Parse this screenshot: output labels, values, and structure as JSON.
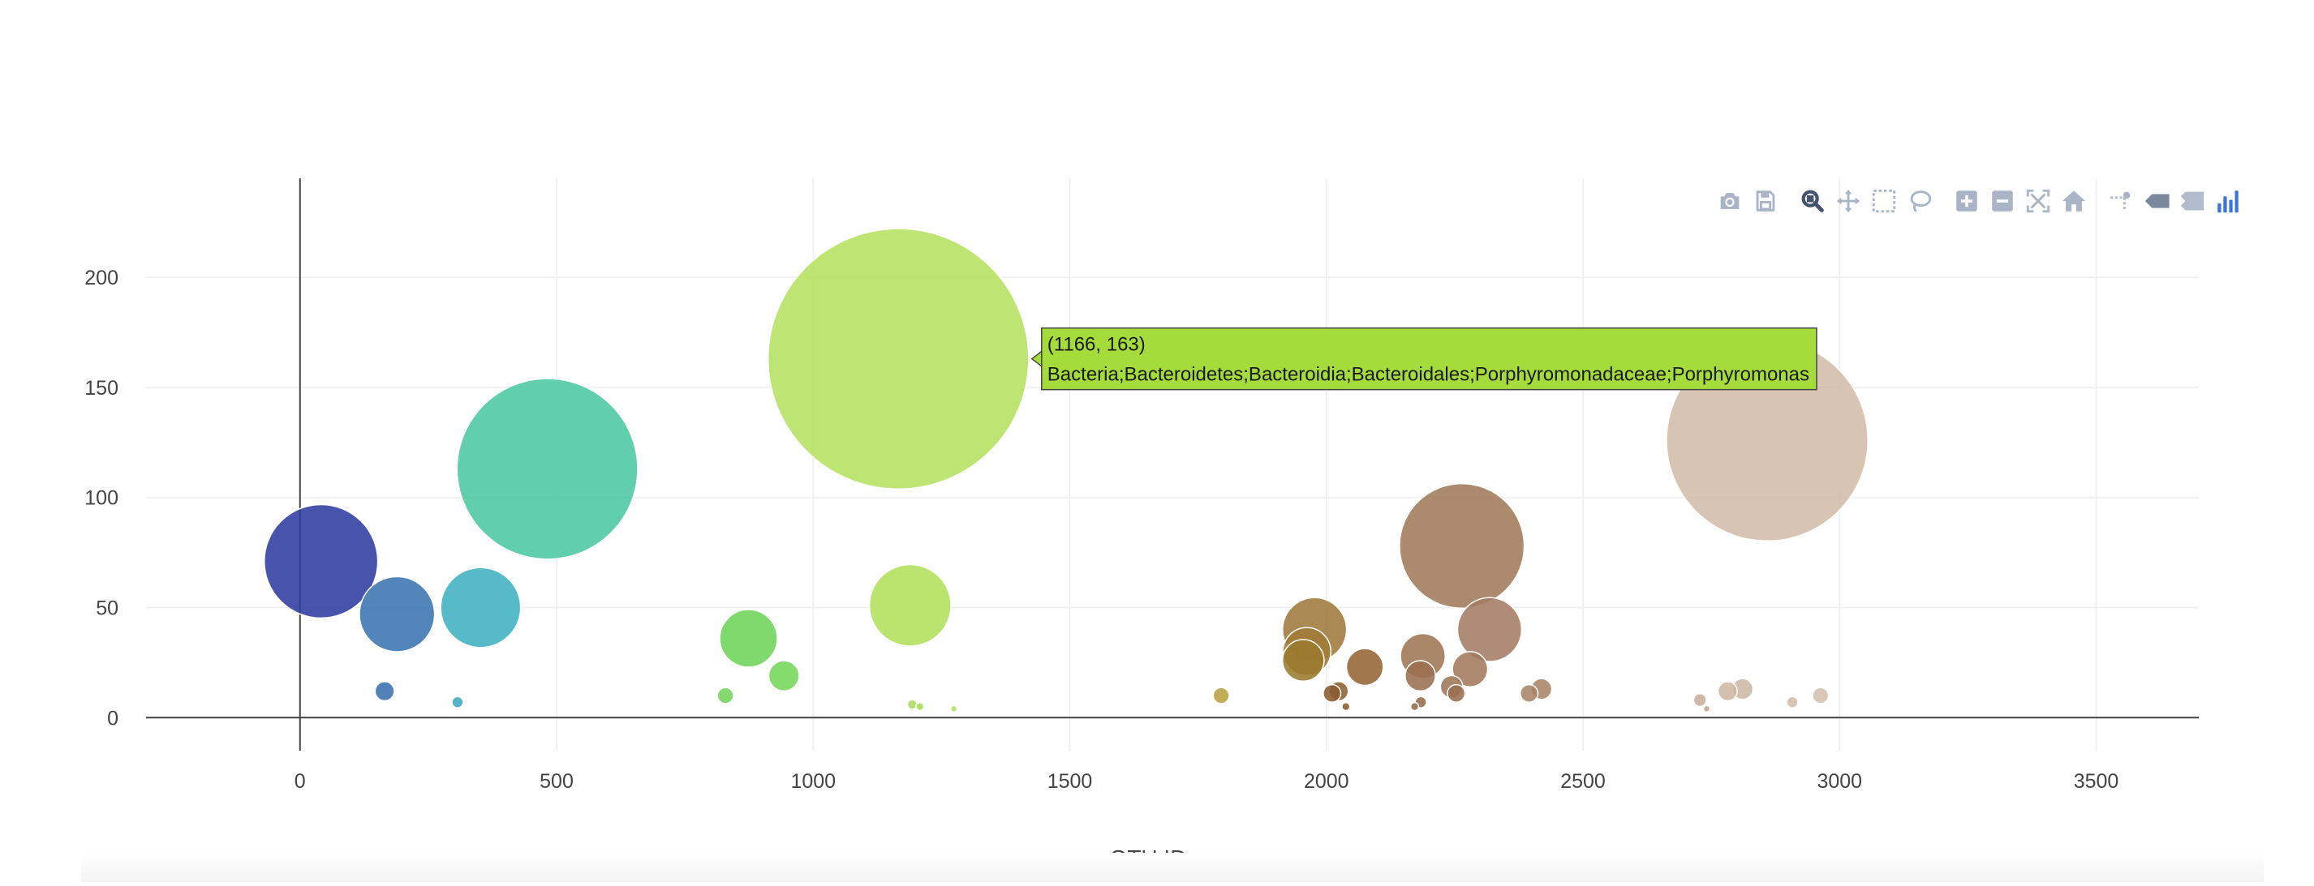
{
  "chart_data": {
    "type": "scatter",
    "mode": "markers",
    "xlabel": "OTU ID",
    "xlim": [
      -300,
      3700
    ],
    "ylim": [
      -15,
      245
    ],
    "x_ticks": [
      0,
      500,
      1000,
      1500,
      2000,
      2500,
      3000,
      3500
    ],
    "y_ticks": [
      0,
      50,
      100,
      150,
      200
    ],
    "grid": true,
    "points": [
      {
        "x": 41,
        "y": 71,
        "size": 71,
        "color": "#2f3b9f"
      },
      {
        "x": 189,
        "y": 47,
        "size": 47,
        "color": "#3a74b0"
      },
      {
        "x": 352,
        "y": 50,
        "size": 50,
        "color": "#3fb0c0"
      },
      {
        "x": 482,
        "y": 113,
        "size": 113,
        "color": "#4cc8a0"
      },
      {
        "x": 165,
        "y": 12,
        "size": 12,
        "color": "#3a6fb0"
      },
      {
        "x": 307,
        "y": 7,
        "size": 7,
        "color": "#3fa6c2"
      },
      {
        "x": 1166,
        "y": 163,
        "size": 163,
        "color": "#b5e160"
      },
      {
        "x": 1189,
        "y": 51,
        "size": 51,
        "color": "#b0e05a"
      },
      {
        "x": 874,
        "y": 36,
        "size": 36,
        "color": "#6ed458"
      },
      {
        "x": 943,
        "y": 19,
        "size": 19,
        "color": "#74d65a"
      },
      {
        "x": 829,
        "y": 10,
        "size": 10,
        "color": "#72d45c"
      },
      {
        "x": 1193,
        "y": 6,
        "size": 6,
        "color": "#a8dc5a"
      },
      {
        "x": 1208,
        "y": 5,
        "size": 5,
        "color": "#a8dc5a"
      },
      {
        "x": 1274,
        "y": 4,
        "size": 4,
        "color": "#b0de5c"
      },
      {
        "x": 1795,
        "y": 10,
        "size": 10,
        "color": "#b8a040"
      },
      {
        "x": 1977,
        "y": 40,
        "size": 40,
        "color": "#9e7a3a"
      },
      {
        "x": 1962,
        "y": 30,
        "size": 30,
        "color": "#a07a36"
      },
      {
        "x": 1955,
        "y": 26,
        "size": 26,
        "color": "#9a7a2e"
      },
      {
        "x": 2075,
        "y": 23,
        "size": 23,
        "color": "#946436"
      },
      {
        "x": 2024,
        "y": 12,
        "size": 12,
        "color": "#8c6030"
      },
      {
        "x": 2011,
        "y": 11,
        "size": 11,
        "color": "#8a5a30"
      },
      {
        "x": 2038,
        "y": 5,
        "size": 5,
        "color": "#8a5a30"
      },
      {
        "x": 2264,
        "y": 78,
        "size": 78,
        "color": "#a07a5a"
      },
      {
        "x": 2318,
        "y": 40,
        "size": 40,
        "color": "#a47c64"
      },
      {
        "x": 2188,
        "y": 28,
        "size": 28,
        "color": "#9e7654"
      },
      {
        "x": 2280,
        "y": 22,
        "size": 22,
        "color": "#a27a5c"
      },
      {
        "x": 2183,
        "y": 19,
        "size": 19,
        "color": "#9a7050"
      },
      {
        "x": 2244,
        "y": 14,
        "size": 14,
        "color": "#9e7656"
      },
      {
        "x": 2253,
        "y": 11,
        "size": 11,
        "color": "#9a7052"
      },
      {
        "x": 2419,
        "y": 13,
        "size": 13,
        "color": "#a88466"
      },
      {
        "x": 2395,
        "y": 11,
        "size": 11,
        "color": "#a88466"
      },
      {
        "x": 2184,
        "y": 7,
        "size": 7,
        "color": "#946a48"
      },
      {
        "x": 2172,
        "y": 5,
        "size": 5,
        "color": "#946a48"
      },
      {
        "x": 2859,
        "y": 126,
        "size": 126,
        "color": "#d2bca8"
      },
      {
        "x": 2811,
        "y": 13,
        "size": 13,
        "color": "#cdb7a4"
      },
      {
        "x": 2782,
        "y": 12,
        "size": 12,
        "color": "#cdb7a4"
      },
      {
        "x": 2963,
        "y": 10,
        "size": 10,
        "color": "#d4c0ae"
      },
      {
        "x": 2728,
        "y": 8,
        "size": 8,
        "color": "#c8ae98"
      },
      {
        "x": 2908,
        "y": 7,
        "size": 7,
        "color": "#d2bca8"
      },
      {
        "x": 2741,
        "y": 4,
        "size": 4,
        "color": "#c0a48c"
      }
    ],
    "hover_label": {
      "point_text": "(1166, 163)",
      "label": "Bacteria;Bacteroidetes;Bacteroidia;Bacteroidales;Porphyromonadaceae;Porphyromonas",
      "bgcolor": "#a5dc3c"
    }
  },
  "modebar": {
    "buttons": [
      {
        "name": "camera-icon",
        "title": "Download plot as a png"
      },
      {
        "name": "save-icon",
        "title": "Save"
      },
      {
        "name": "zoom-icon",
        "title": "Zoom"
      },
      {
        "name": "pan-icon",
        "title": "Pan"
      },
      {
        "name": "box-select-icon",
        "title": "Box Select"
      },
      {
        "name": "lasso-select-icon",
        "title": "Lasso Select"
      },
      {
        "name": "zoom-in-icon",
        "title": "Zoom in"
      },
      {
        "name": "zoom-out-icon",
        "title": "Zoom out"
      },
      {
        "name": "autoscale-icon",
        "title": "Autoscale"
      },
      {
        "name": "home-icon",
        "title": "Reset axes"
      },
      {
        "name": "spike-lines-icon",
        "title": "Toggle Spike Lines"
      },
      {
        "name": "hover-closest-icon",
        "title": "Show closest data on hover"
      },
      {
        "name": "hover-compare-icon",
        "title": "Compare data on hover"
      },
      {
        "name": "plotly-logo-icon",
        "title": "Produced with Plotly"
      }
    ],
    "icon_color": "#a9b4c7",
    "active_color": "#44546e"
  }
}
